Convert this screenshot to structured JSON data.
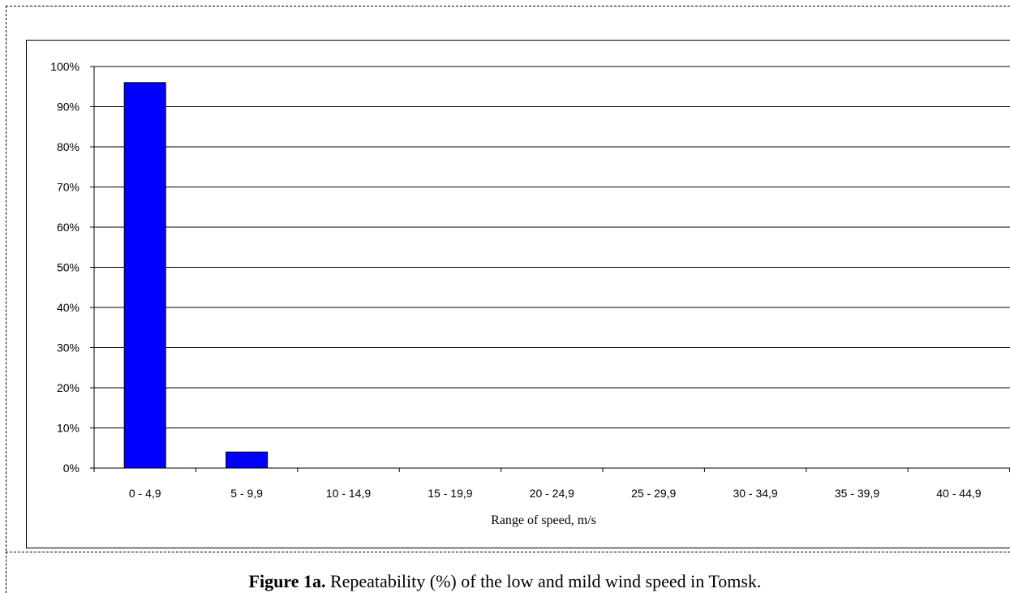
{
  "chart_data": {
    "type": "bar",
    "categories": [
      "0 - 4,9",
      "5 - 9,9",
      "10 - 14,9",
      "15 - 19,9",
      "20 - 24,9",
      "25 - 29,9",
      "30 - 34,9",
      "35 - 39,9",
      "40 - 44,9"
    ],
    "values": [
      96,
      4,
      0,
      0,
      0,
      0,
      0,
      0,
      0
    ],
    "xlabel": "Range of speed, m/s",
    "ylabel": "",
    "ylim": [
      0,
      100
    ],
    "yticks": [
      "0%",
      "10%",
      "20%",
      "30%",
      "40%",
      "50%",
      "60%",
      "70%",
      "80%",
      "90%",
      "100%"
    ],
    "grid": true,
    "legend": "none",
    "bar_color": "#0000ff"
  },
  "caption": {
    "label": "Figure 1a.",
    "text": " Repeatability (%) of the low and mild wind speed in Tomsk."
  }
}
